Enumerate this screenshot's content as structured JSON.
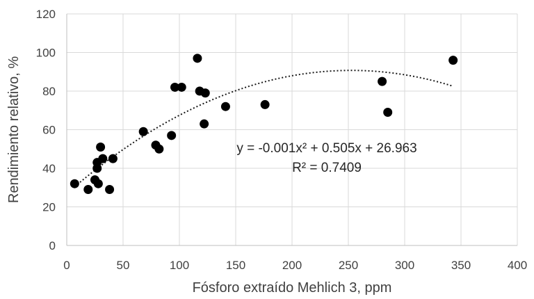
{
  "chart_data": {
    "type": "scatter",
    "title": "",
    "xlabel": "Fósforo extraído Mehlich 3, ppm",
    "ylabel": "Rendimiento relativo, %",
    "xlim": [
      0,
      400
    ],
    "ylim": [
      0,
      120
    ],
    "xticks": [
      0,
      50,
      100,
      150,
      200,
      250,
      300,
      350,
      400
    ],
    "yticks": [
      0,
      20,
      40,
      60,
      80,
      100,
      120
    ],
    "grid": true,
    "legend": "none",
    "point_color": "#000000",
    "trendline_color": "#1a1a1a",
    "points": [
      {
        "x": 7,
        "y": 32
      },
      {
        "x": 19,
        "y": 29
      },
      {
        "x": 25,
        "y": 34
      },
      {
        "x": 27,
        "y": 40
      },
      {
        "x": 27,
        "y": 43
      },
      {
        "x": 28,
        "y": 32
      },
      {
        "x": 30,
        "y": 51
      },
      {
        "x": 32,
        "y": 45
      },
      {
        "x": 38,
        "y": 29
      },
      {
        "x": 41,
        "y": 45
      },
      {
        "x": 68,
        "y": 59
      },
      {
        "x": 79,
        "y": 52
      },
      {
        "x": 82,
        "y": 50
      },
      {
        "x": 93,
        "y": 57
      },
      {
        "x": 96,
        "y": 82
      },
      {
        "x": 102,
        "y": 82
      },
      {
        "x": 116,
        "y": 97
      },
      {
        "x": 118,
        "y": 80
      },
      {
        "x": 122,
        "y": 63
      },
      {
        "x": 123,
        "y": 79
      },
      {
        "x": 141,
        "y": 72
      },
      {
        "x": 176,
        "y": 73
      },
      {
        "x": 280,
        "y": 85
      },
      {
        "x": 285,
        "y": 69
      },
      {
        "x": 343,
        "y": 96
      }
    ],
    "trendline": {
      "type": "polynomial",
      "style": "dotted",
      "coefficients": {
        "a": -0.001,
        "b": 0.505,
        "c": 26.963
      },
      "x_range": [
        7,
        343
      ]
    },
    "annotations": {
      "equation": "y = -0.001x² + 0.505x + 26.963",
      "r_squared": "R² = 0.7409"
    }
  }
}
